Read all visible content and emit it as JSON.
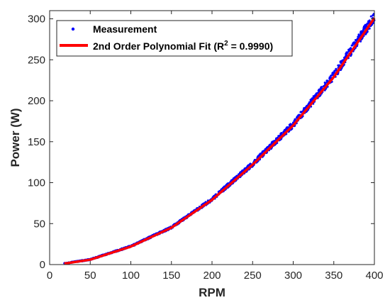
{
  "colors": {
    "measurement": "#0000ff",
    "fit": "#ff0000",
    "axis": "#262626"
  },
  "chart_data": {
    "type": "scatter",
    "xlabel": "RPM",
    "ylabel": "Power (W)",
    "xlim": [
      0,
      400
    ],
    "ylim": [
      0,
      310
    ],
    "xticks": [
      0,
      50,
      100,
      150,
      200,
      250,
      300,
      350,
      400
    ],
    "yticks": [
      0,
      50,
      100,
      150,
      200,
      250,
      300
    ],
    "grid": false,
    "legend_position": "top-left",
    "series": [
      {
        "name": "Measurement",
        "kind": "markers",
        "x_range": [
          18,
          400
        ],
        "y_at_x": [
          [
            20,
            1.5
          ],
          [
            50,
            6
          ],
          [
            100,
            22
          ],
          [
            150,
            45
          ],
          [
            200,
            79
          ],
          [
            250,
            122
          ],
          [
            300,
            170
          ],
          [
            350,
            229
          ],
          [
            400,
            301
          ]
        ]
      },
      {
        "name": "2nd Order Polynomial Fit (R",
        "name_superscript": "2",
        "name_suffix": " = 0.9990)",
        "kind": "line",
        "x_range": [
          18,
          400
        ],
        "y_at_x": [
          [
            20,
            1.5
          ],
          [
            50,
            6
          ],
          [
            100,
            22
          ],
          [
            150,
            45
          ],
          [
            200,
            79
          ],
          [
            250,
            122
          ],
          [
            300,
            170
          ],
          [
            350,
            229
          ],
          [
            400,
            301
          ]
        ]
      }
    ]
  }
}
